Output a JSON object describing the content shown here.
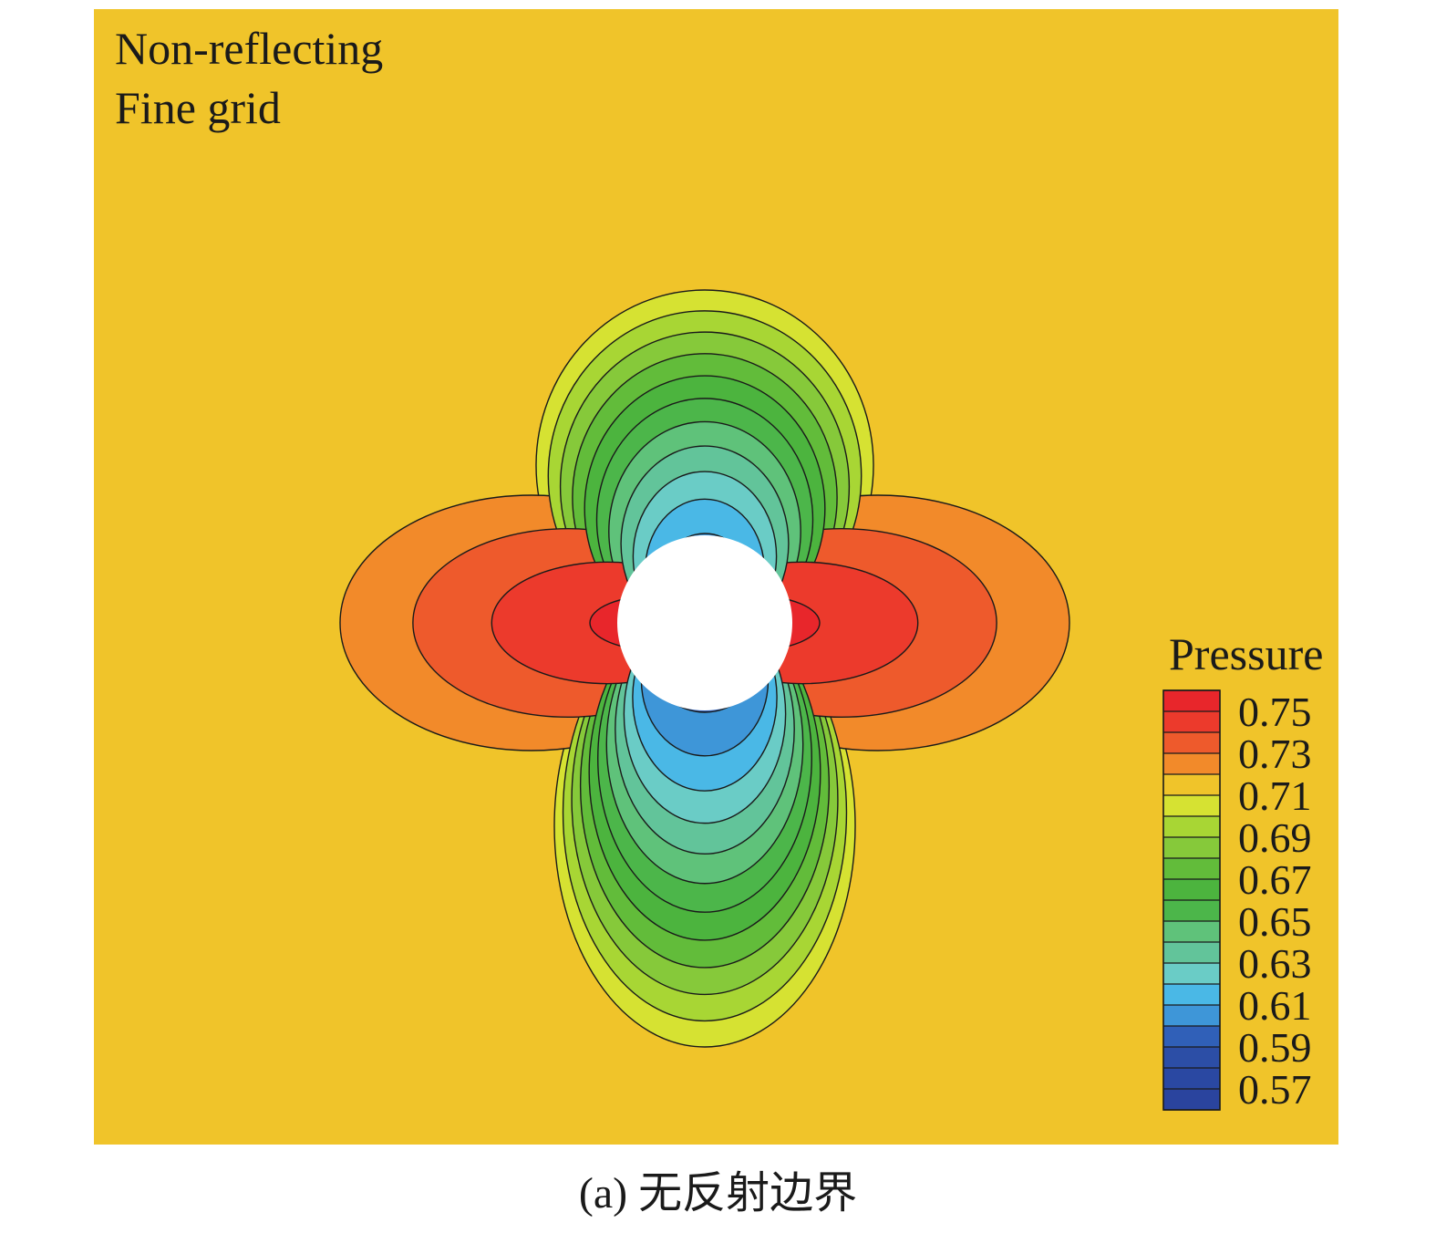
{
  "annotations": {
    "line1": "Non-reflecting",
    "line2": "Fine grid"
  },
  "caption": "(a) 无反射边界",
  "chart_data": {
    "type": "heatmap",
    "title": "",
    "xlabel": "",
    "ylabel": "",
    "colorbar": {
      "title": "Pressure",
      "placement": "right",
      "min": 0.56,
      "max": 0.76,
      "tick_labels": [
        "0.75",
        "0.73",
        "0.71",
        "0.69",
        "0.67",
        "0.65",
        "0.63",
        "0.61",
        "0.59",
        "0.57"
      ],
      "tick_values": [
        0.75,
        0.73,
        0.71,
        0.69,
        0.67,
        0.65,
        0.63,
        0.61,
        0.59,
        0.57
      ],
      "levels": [
        {
          "value": 0.755,
          "color": "#e8262b"
        },
        {
          "value": 0.745,
          "color": "#ec3a2c"
        },
        {
          "value": 0.735,
          "color": "#ee5a2c"
        },
        {
          "value": 0.725,
          "color": "#f28a2a"
        },
        {
          "value": 0.715,
          "color": "#f0c42a"
        },
        {
          "value": 0.705,
          "color": "#d6e232"
        },
        {
          "value": 0.695,
          "color": "#a8d634"
        },
        {
          "value": 0.685,
          "color": "#86c93a"
        },
        {
          "value": 0.675,
          "color": "#62bc3a"
        },
        {
          "value": 0.665,
          "color": "#4cb43e"
        },
        {
          "value": 0.655,
          "color": "#4cb64a"
        },
        {
          "value": 0.645,
          "color": "#5fc27a"
        },
        {
          "value": 0.635,
          "color": "#62c49a"
        },
        {
          "value": 0.625,
          "color": "#6accc6"
        },
        {
          "value": 0.615,
          "color": "#4ab8e6"
        },
        {
          "value": 0.605,
          "color": "#3e96d8"
        },
        {
          "value": 0.595,
          "color": "#3060b8"
        },
        {
          "value": 0.585,
          "color": "#2c4ea6"
        },
        {
          "value": 0.575,
          "color": "#2a48a2"
        },
        {
          "value": 0.565,
          "color": "#2a449e"
        }
      ]
    },
    "field": {
      "background_value": 0.715,
      "obstacle": "circle",
      "contours": [
        {
          "lobe": "top",
          "value": 0.71
        },
        {
          "lobe": "top",
          "value": 0.7
        },
        {
          "lobe": "top",
          "value": 0.69
        },
        {
          "lobe": "top",
          "value": 0.68
        },
        {
          "lobe": "top",
          "value": 0.67
        },
        {
          "lobe": "top",
          "value": 0.66
        },
        {
          "lobe": "top",
          "value": 0.65
        },
        {
          "lobe": "top",
          "value": 0.64
        },
        {
          "lobe": "top",
          "value": 0.63
        },
        {
          "lobe": "top",
          "value": 0.62
        },
        {
          "lobe": "top",
          "value": 0.61
        },
        {
          "lobe": "bottom",
          "value": 0.71
        },
        {
          "lobe": "bottom",
          "value": 0.7
        },
        {
          "lobe": "bottom",
          "value": 0.69
        },
        {
          "lobe": "bottom",
          "value": 0.68
        },
        {
          "lobe": "bottom",
          "value": 0.67
        },
        {
          "lobe": "bottom",
          "value": 0.66
        },
        {
          "lobe": "bottom",
          "value": 0.65
        },
        {
          "lobe": "bottom",
          "value": 0.64
        },
        {
          "lobe": "bottom",
          "value": 0.63
        },
        {
          "lobe": "bottom",
          "value": 0.62
        },
        {
          "lobe": "bottom",
          "value": 0.61
        },
        {
          "lobe": "bottom",
          "value": 0.6
        },
        {
          "lobe": "left",
          "value": 0.72
        },
        {
          "lobe": "left",
          "value": 0.73
        },
        {
          "lobe": "left",
          "value": 0.74
        },
        {
          "lobe": "left",
          "value": 0.75
        },
        {
          "lobe": "right",
          "value": 0.72
        },
        {
          "lobe": "right",
          "value": 0.73
        },
        {
          "lobe": "right",
          "value": 0.74
        },
        {
          "lobe": "right",
          "value": 0.75
        }
      ]
    }
  }
}
